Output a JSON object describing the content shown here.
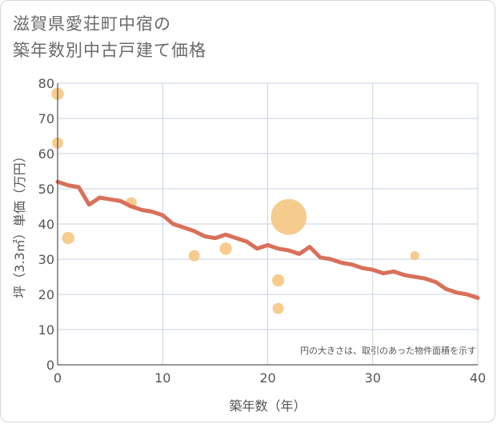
{
  "title_line1": "滋賀県愛荘町中宿の",
  "title_line2": "築年数別中古戸建て価格",
  "chart_data": {
    "type": "scatter",
    "xlabel": "築年数（年）",
    "ylabel": "坪（3.3㎡）単価（万円）",
    "xlim": [
      0,
      40
    ],
    "ylim": [
      0,
      80
    ],
    "x_ticks": [
      "0",
      "10",
      "20",
      "30",
      "40"
    ],
    "y_ticks": [
      "0",
      "10",
      "20",
      "30",
      "40",
      "50",
      "60",
      "70",
      "80"
    ],
    "grid": true,
    "note": "円の大きさは、取引のあった物件面積を示す",
    "bubbles": [
      {
        "x": 0,
        "y": 77,
        "size": 1.1
      },
      {
        "x": 0,
        "y": 63,
        "size": 1.0
      },
      {
        "x": 1,
        "y": 36,
        "size": 1.1
      },
      {
        "x": 7,
        "y": 46,
        "size": 1.0
      },
      {
        "x": 13,
        "y": 31,
        "size": 1.0
      },
      {
        "x": 16,
        "y": 33,
        "size": 1.1
      },
      {
        "x": 21,
        "y": 24,
        "size": 1.1
      },
      {
        "x": 21,
        "y": 16,
        "size": 1.0
      },
      {
        "x": 22,
        "y": 42,
        "size": 3.2
      },
      {
        "x": 34,
        "y": 31,
        "size": 0.8
      }
    ],
    "trend": {
      "x": [
        0,
        1,
        2,
        3,
        4,
        5,
        6,
        7,
        8,
        9,
        10,
        11,
        12,
        13,
        14,
        15,
        16,
        17,
        18,
        19,
        20,
        21,
        22,
        23,
        24,
        25,
        26,
        27,
        28,
        29,
        30,
        31,
        32,
        33,
        34,
        35,
        36,
        37,
        38,
        39,
        40
      ],
      "y": [
        52,
        51,
        50.5,
        45.5,
        47.5,
        47,
        46.5,
        45,
        44,
        43.5,
        42.5,
        40,
        39,
        38,
        36.5,
        36,
        37,
        36,
        35,
        33,
        34,
        33,
        32.5,
        31.5,
        33.5,
        30.5,
        30,
        29,
        28.5,
        27.5,
        27,
        26,
        26.5,
        25.5,
        25,
        24.5,
        23.5,
        21.5,
        20.5,
        20,
        19
      ]
    },
    "colors": {
      "bubble": "#f5c37a",
      "trend": "#d9705a",
      "grid": "#c9d3df",
      "axis": "#333333"
    }
  }
}
